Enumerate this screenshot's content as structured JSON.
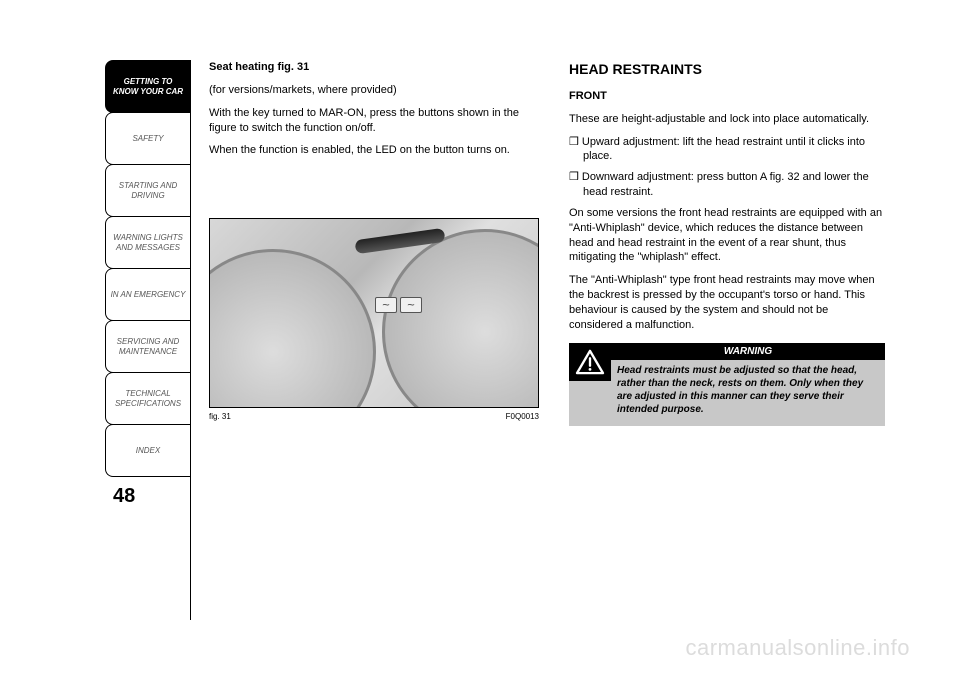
{
  "sidebar": {
    "tabs": [
      {
        "label": "GETTING TO\nKNOW YOUR CAR",
        "active": true
      },
      {
        "label": "SAFETY",
        "active": false
      },
      {
        "label": "STARTING AND\nDRIVING",
        "active": false
      },
      {
        "label": "WARNING LIGHTS\nAND MESSAGES",
        "active": false
      },
      {
        "label": "IN AN EMERGENCY",
        "active": false
      },
      {
        "label": "SERVICING AND\nMAINTENANCE",
        "active": false
      },
      {
        "label": "TECHNICAL\nSPECIFICATIONS",
        "active": false
      },
      {
        "label": "INDEX",
        "active": false
      }
    ],
    "page_number": "48"
  },
  "left_column": {
    "heading": "Seat heating fig. 31",
    "p1": "(for versions/markets, where provided)",
    "p2": "With the key turned to MAR-ON, press the buttons shown in the figure to switch the function on/off.",
    "p3": "When the function is enabled, the LED on the button turns on.",
    "figure": {
      "caption_left": "fig. 31",
      "caption_right": "F0Q0013"
    }
  },
  "right_column": {
    "title": "HEAD RESTRAINTS",
    "subtitle": "FRONT",
    "p1": "These are height-adjustable and lock into place automatically.",
    "b1": "❒ Upward adjustment: lift the head restraint until it clicks into place.",
    "b2": "❒ Downward adjustment: press button A fig. 32 and lower the head restraint.",
    "p2": "On some versions the front head restraints are equipped with an \"Anti-Whiplash\" device, which reduces the distance between head and head restraint in the event of a rear shunt, thus mitigating the \"whiplash\" effect.",
    "p3": "The \"Anti-Whiplash\" type front head restraints may move when the backrest is pressed by the occupant's torso or hand. This behaviour is caused by the system and should not be considered a malfunction.",
    "warning": {
      "header": "WARNING",
      "text": "Head restraints must be adjusted so that the head, rather than the neck, rests on them. Only when they are adjusted in this manner can they serve their intended purpose."
    }
  },
  "watermark": "carmanualsonline.info",
  "colors": {
    "page_bg": "#ffffff",
    "text": "#000000",
    "tab_inactive_text": "#555555",
    "tab_active_bg": "#000000",
    "tab_active_text": "#ffffff",
    "warning_bg": "#c8c8c8",
    "warning_header_bg": "#000000",
    "watermark": "#dcdcdc"
  }
}
